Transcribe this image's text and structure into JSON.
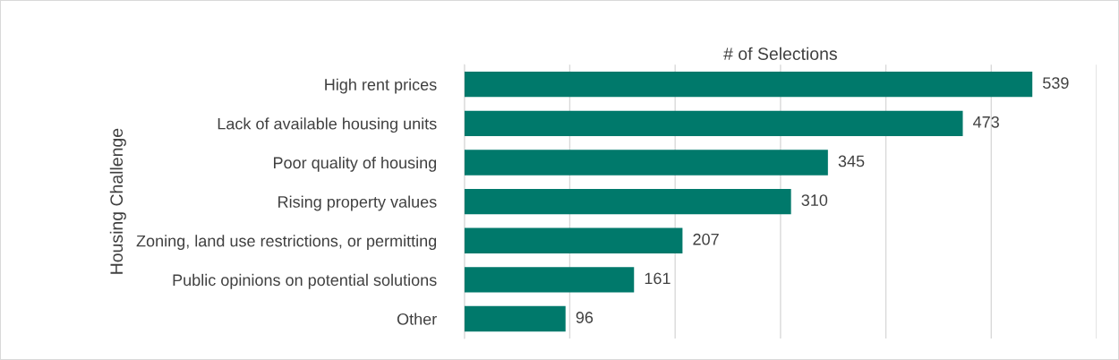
{
  "chart_data": {
    "type": "bar",
    "orientation": "horizontal",
    "xlabel": "# of Selections",
    "ylabel": "Housing Challenge",
    "categories": [
      "High rent prices",
      "Lack of available housing units",
      "Poor quality of housing",
      "Rising property values",
      "Zoning, land use restrictions, or permitting",
      "Public opinions on potential solutions",
      "Other"
    ],
    "values": [
      539,
      473,
      345,
      310,
      207,
      161,
      96
    ],
    "color": "#00796b",
    "data_labels": true,
    "grid": "x",
    "tick_labels": "y",
    "xlim": [
      0,
      600
    ],
    "xticks": [
      {
        "value": 0,
        "label": null
      },
      {
        "value": 100,
        "label": null
      },
      {
        "value": 200,
        "label": null
      },
      {
        "value": 300,
        "label": null
      },
      {
        "value": 400,
        "label": null
      },
      {
        "value": 500,
        "label": null
      },
      {
        "value": 600,
        "label": null
      }
    ]
  }
}
